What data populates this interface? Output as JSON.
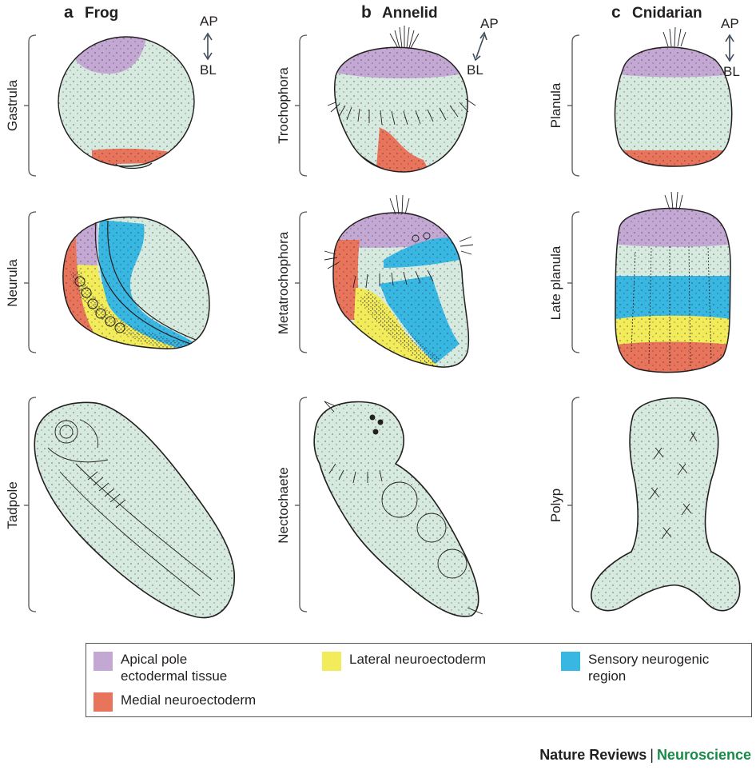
{
  "colors": {
    "body": "#d6eadf",
    "apical": "#c3a8d3",
    "medial": "#e8745b",
    "lateral": "#f2ec5b",
    "sensory": "#39b7e3",
    "outline": "#231f20"
  },
  "columns": [
    {
      "letter": "a",
      "name": "Frog",
      "stages": [
        "Gastrula",
        "Neurula",
        "Tadpole"
      ]
    },
    {
      "letter": "b",
      "name": "Annelid",
      "stages": [
        "Trochophora",
        "Metatrochophora",
        "Nectochaete"
      ]
    },
    {
      "letter": "c",
      "name": "Cnidarian",
      "stages": [
        "Planula",
        "Late planula",
        "Polyp"
      ]
    }
  ],
  "axis": {
    "top": "AP",
    "bottom": "BL"
  },
  "legend": [
    {
      "label_line1": "Apical pole",
      "label_line2": "ectodermal tissue",
      "color": "apical"
    },
    {
      "label_line1": "Lateral neuroectoderm",
      "label_line2": "",
      "color": "lateral"
    },
    {
      "label_line1": "Sensory neurogenic",
      "label_line2": "region",
      "color": "sensory"
    },
    {
      "label_line1": "Medial neuroectoderm",
      "label_line2": "",
      "color": "medial"
    }
  ],
  "footer": {
    "journal": "Nature Reviews",
    "subject": "Neuroscience"
  }
}
